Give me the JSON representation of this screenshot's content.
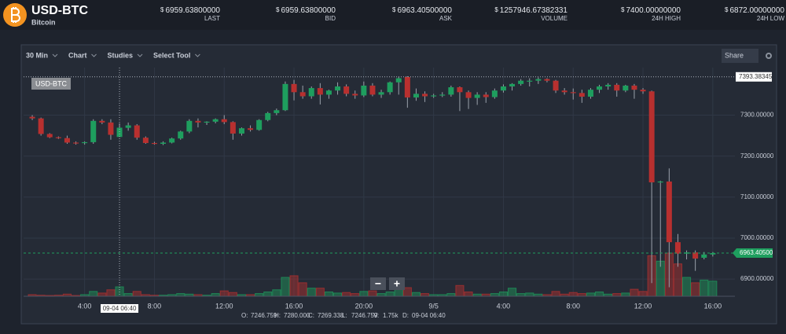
{
  "header": {
    "symbol": "USD-BTC",
    "name": "Bitcoin",
    "currency": "$",
    "stats": [
      {
        "value": "6959.63800000",
        "label": "LAST"
      },
      {
        "value": "6959.63800000",
        "label": "BID"
      },
      {
        "value": "6963.40500000",
        "label": "ASK"
      },
      {
        "value": "1257946.67382331",
        "label": "VOLUME"
      },
      {
        "value": "7400.00000000",
        "label": "24H HIGH"
      },
      {
        "value": "6872.00000000",
        "label": "24H LOW"
      }
    ]
  },
  "toolbar": {
    "items": [
      "30 Min",
      "Chart",
      "Studies",
      "Select Tool"
    ],
    "share": "Share",
    "zoom": [
      "−",
      "+"
    ]
  },
  "chart_data": {
    "type": "candlestick",
    "legend": "USD-BTC",
    "categories": [
      null,
      null,
      null,
      null,
      null,
      null,
      "4:00",
      null,
      null,
      null,
      null,
      null,
      null,
      null,
      "8:00",
      null,
      null,
      null,
      null,
      null,
      null,
      null,
      "12:00",
      null,
      null,
      null,
      null,
      null,
      null,
      null,
      "16:00",
      null,
      null,
      null,
      null,
      null,
      null,
      null,
      "20:00",
      null,
      null,
      null,
      null,
      null,
      null,
      null,
      "9/5",
      null,
      null,
      null,
      null,
      null,
      null,
      null,
      "4:00",
      null,
      null,
      null,
      null,
      null,
      null,
      null,
      "8:00",
      null,
      null,
      null,
      null,
      null,
      null,
      null,
      "12:00",
      null,
      null,
      null,
      null,
      null,
      null,
      null,
      "16:00"
    ],
    "open": [
      7296,
      7292,
      7254,
      7246,
      7244,
      7233,
      7232,
      7234,
      7286,
      7282,
      7246.759,
      7269,
      7275,
      7245,
      7232,
      7230,
      7233,
      7243,
      7260,
      7286,
      7282,
      7284,
      7290,
      7283,
      7255,
      7268,
      7264,
      7288,
      7305,
      7312,
      7376,
      7356,
      7346,
      7366,
      7350,
      7360,
      7370,
      7352,
      7348,
      7372,
      7350,
      7356,
      7380,
      7393,
      7343,
      7352,
      7346,
      7348,
      7350,
      7368,
      7356,
      7342,
      7350,
      7344,
      7360,
      7370,
      7376,
      7384,
      7384,
      7388,
      7384,
      7360,
      7356,
      7354,
      7345,
      7362,
      7370,
      7374,
      7360,
      7372,
      7362,
      7358,
      7136,
      7138,
      6990,
      6962,
      6965,
      6952,
      6960
    ],
    "high": [
      7300,
      7294,
      7256,
      7248,
      7250,
      7236,
      7236,
      7290,
      7290,
      7290,
      7280,
      7282,
      7278,
      7248,
      7235,
      7236,
      7245,
      7262,
      7290,
      7292,
      7285,
      7292,
      7300,
      7285,
      7270,
      7275,
      7290,
      7308,
      7316,
      7382,
      7386,
      7372,
      7370,
      7378,
      7362,
      7380,
      7375,
      7360,
      7382,
      7378,
      7362,
      7382,
      7394,
      7395,
      7365,
      7358,
      7352,
      7356,
      7372,
      7370,
      7360,
      7356,
      7356,
      7365,
      7375,
      7378,
      7388,
      7390,
      7392,
      7390,
      7386,
      7366,
      7365,
      7362,
      7366,
      7374,
      7378,
      7378,
      7374,
      7376,
      7366,
      7360,
      7140,
      7170,
      7010,
      6970,
      6970,
      6966,
      6966
    ],
    "low": [
      7288,
      7250,
      7244,
      7242,
      7230,
      7228,
      7228,
      7230,
      7278,
      7240,
      7246.759,
      7262,
      7240,
      7230,
      7228,
      7227,
      7231,
      7240,
      7256,
      7270,
      7276,
      7280,
      7278,
      7240,
      7250,
      7260,
      7262,
      7285,
      7300,
      7310,
      7336,
      7340,
      7340,
      7326,
      7340,
      7350,
      7346,
      7340,
      7344,
      7346,
      7342,
      7350,
      7350,
      7318,
      7335,
      7332,
      7342,
      7344,
      7345,
      7310,
      7315,
      7325,
      7330,
      7340,
      7355,
      7360,
      7372,
      7370,
      7376,
      7380,
      7354,
      7350,
      7338,
      7330,
      7340,
      7354,
      7362,
      7345,
      7356,
      7340,
      7352,
      6890,
      6930,
      6880,
      6930,
      6948,
      6920,
      6948,
      6955
    ],
    "close": [
      7292,
      7254,
      7246,
      7244,
      7233,
      7232,
      7234,
      7286,
      7282,
      7252,
      7269.338,
      7275,
      7245,
      7232,
      7230,
      7233,
      7243,
      7260,
      7286,
      7282,
      7284,
      7290,
      7283,
      7255,
      7268,
      7264,
      7288,
      7305,
      7312,
      7376,
      7356,
      7346,
      7366,
      7350,
      7360,
      7370,
      7352,
      7348,
      7372,
      7350,
      7356,
      7380,
      7390,
      7343,
      7352,
      7346,
      7348,
      7350,
      7368,
      7356,
      7342,
      7350,
      7344,
      7360,
      7370,
      7376,
      7384,
      7384,
      7388,
      7384,
      7360,
      7356,
      7354,
      7345,
      7362,
      7370,
      7374,
      7360,
      7372,
      7362,
      7358,
      7136,
      7138,
      6990,
      6962,
      6965,
      6950,
      6960,
      6963.405
    ],
    "volume": [
      300,
      200,
      150,
      200,
      400,
      150,
      300,
      900,
      600,
      1200,
      1750,
      500,
      900,
      300,
      200,
      200,
      300,
      500,
      400,
      300,
      200,
      500,
      1000,
      700,
      300,
      300,
      500,
      800,
      1200,
      3500,
      3800,
      2500,
      1500,
      1500,
      800,
      600,
      700,
      500,
      900,
      1000,
      500,
      800,
      2000,
      1600,
      700,
      500,
      300,
      300,
      500,
      2000,
      800,
      400,
      400,
      500,
      800,
      1500,
      500,
      600,
      400,
      300,
      900,
      400,
      700,
      500,
      600,
      800,
      400,
      500,
      600,
      1300,
      900,
      7500,
      6500,
      8000,
      6000,
      3500,
      2500,
      3000,
      2800
    ],
    "ylim": [
      6858,
      7416
    ],
    "yticks": [
      {
        "value": 6900,
        "label": "6900.00000"
      },
      {
        "value": 7000,
        "label": "7000.00000"
      },
      {
        "value": 7100,
        "label": "7100.00000"
      },
      {
        "value": 7200,
        "label": "7200.00000"
      },
      {
        "value": 7300,
        "label": "7300.00000"
      }
    ],
    "high_marker": {
      "value": 7393.38345,
      "label": "7393.38345"
    },
    "last_price": {
      "value": 6963.405,
      "label": "6963.40500"
    },
    "crosshair": {
      "index": 10,
      "label": "09-04 06:40"
    },
    "up_color": "#1e9e5e",
    "down_color": "#b8302f"
  },
  "readout": [
    {
      "label": "O:",
      "value": "7246.759"
    },
    {
      "label": "H:",
      "value": "7280.000"
    },
    {
      "label": "C:",
      "value": "7269.338"
    },
    {
      "label": "L:",
      "value": "7246.759"
    },
    {
      "label": "V:",
      "value": "1.75k"
    },
    {
      "label": "D:",
      "value": "09-04 06:40"
    }
  ]
}
